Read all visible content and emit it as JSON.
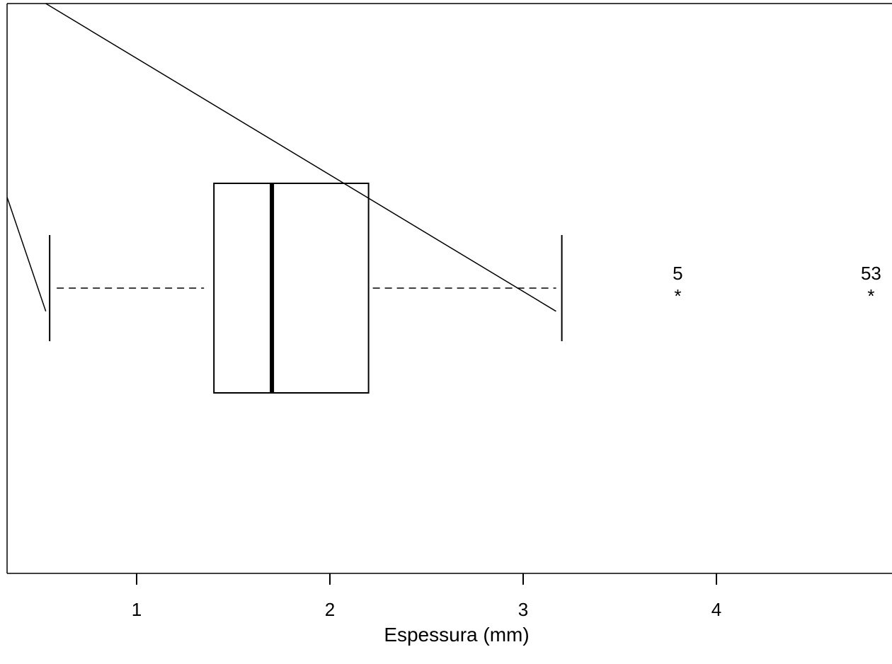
{
  "chart_data": {
    "type": "boxplot",
    "orientation": "horizontal",
    "title": "",
    "xlabel": "Espessura (mm)",
    "ylabel": "",
    "xlim": [
      0.33,
      4.9
    ],
    "xticks": [
      1,
      2,
      3,
      4
    ],
    "xtick_labels": [
      "1",
      "2",
      "3",
      "4"
    ],
    "grid": false,
    "box": {
      "whisker_low": 0.55,
      "q1": 1.4,
      "median": 1.7,
      "q3": 2.2,
      "whisker_high": 3.2
    },
    "outliers": [
      {
        "value": 3.8,
        "label": "5",
        "marker": "*"
      },
      {
        "value": 4.8,
        "label": "53",
        "marker": "*"
      }
    ],
    "annotation_lines": [
      {
        "x1": 0.53,
        "y1": 1.0,
        "x2": 3.17,
        "y2": 0.46
      },
      {
        "x1": 0.33,
        "y1": 0.66,
        "x2": 0.53,
        "y2": 0.46
      }
    ]
  },
  "colors": {
    "line": "#000000",
    "background": "#ffffff"
  }
}
